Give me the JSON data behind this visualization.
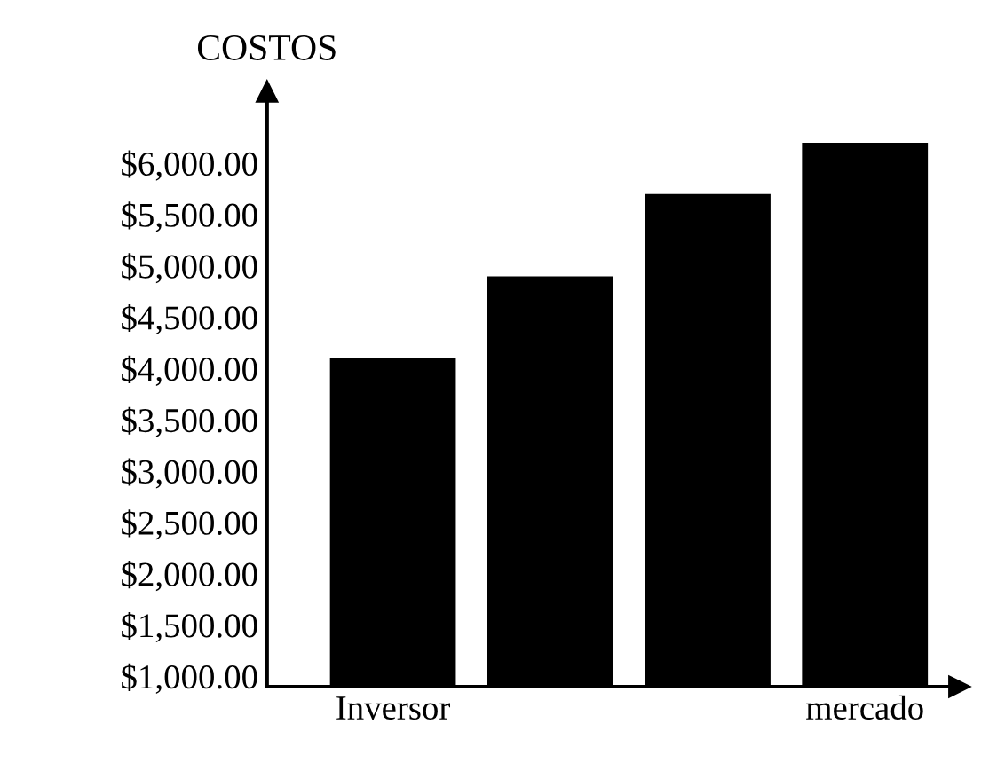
{
  "chart_data": {
    "type": "bar",
    "ylabel": "COSTOS",
    "categories": [
      "Inversor",
      null,
      null,
      "mercado"
    ],
    "values": [
      4100,
      4900,
      5700,
      6200
    ],
    "color": "#000000",
    "ylim": [
      900,
      6700
    ],
    "yticks": [
      {
        "value": 1000,
        "label": "$1,000.00"
      },
      {
        "value": 1500,
        "label": "$1,500.00"
      },
      {
        "value": 2000,
        "label": "$2,000.00"
      },
      {
        "value": 2500,
        "label": "$2,500.00"
      },
      {
        "value": 3000,
        "label": "$3,000.00"
      },
      {
        "value": 3500,
        "label": "$3,500.00"
      },
      {
        "value": 4000,
        "label": "$4,000.00"
      },
      {
        "value": 4500,
        "label": "$4,500.00"
      },
      {
        "value": 5000,
        "label": "$5,000.00"
      },
      {
        "value": 5500,
        "label": "$5,500.00"
      },
      {
        "value": 6000,
        "label": "$6,000.00"
      }
    ],
    "grid": false
  }
}
